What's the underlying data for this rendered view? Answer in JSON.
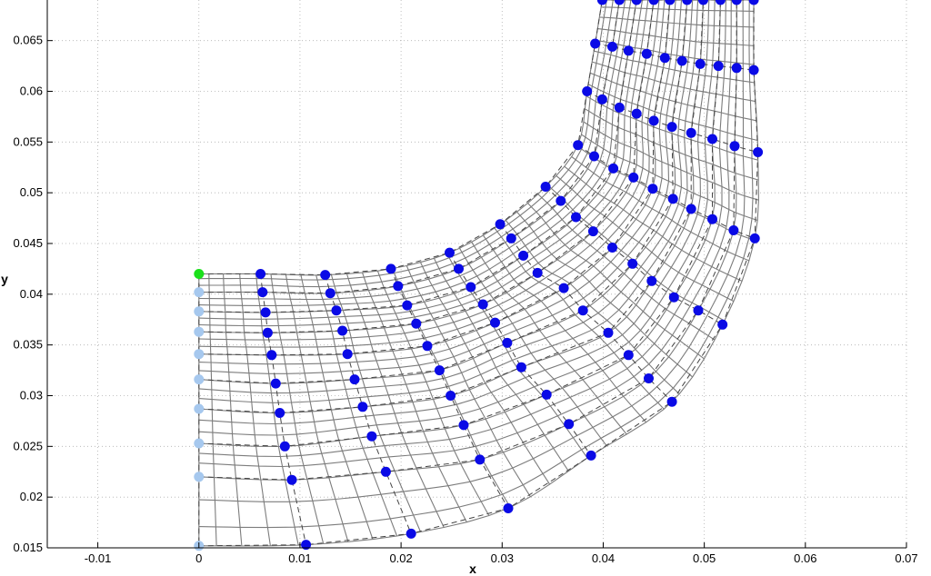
{
  "chart_data": {
    "type": "scatter",
    "xlabel": "x",
    "ylabel": "y",
    "xlim": [
      -0.015,
      0.07
    ],
    "ylim": [
      0.015,
      0.069
    ],
    "grid": true,
    "xticks": [
      "-0.01",
      "0",
      "0.01",
      "0.02",
      "0.03",
      "0.04",
      "0.05",
      "0.06",
      "0.07"
    ],
    "xtick_values": [
      -0.01,
      0,
      0.01,
      0.02,
      0.03,
      0.04,
      0.05,
      0.06,
      0.07
    ],
    "yticks": [
      "0.015",
      "0.02",
      "0.025",
      "0.03",
      "0.035",
      "0.04",
      "0.045",
      "0.05",
      "0.055",
      "0.06",
      "0.065"
    ],
    "ytick_values": [
      0.015,
      0.02,
      0.025,
      0.03,
      0.035,
      0.04,
      0.045,
      0.05,
      0.055,
      0.06,
      0.065
    ],
    "colors": {
      "control_point": "#0a0ae6",
      "inlet_point": "#a6c8ee",
      "highlight_point": "#1be01b",
      "mesh": "#7c7c7c",
      "control_net": "#444444",
      "grid": "#b0b0b0"
    },
    "series": [
      {
        "points": [
          [
            0,
            0.0152
          ],
          [
            0,
            0.022
          ],
          [
            0,
            0.0253
          ],
          [
            0,
            0.0287
          ],
          [
            0,
            0.0316
          ],
          [
            0,
            0.0341
          ],
          [
            0,
            0.0363
          ],
          [
            0,
            0.0383
          ],
          [
            0,
            0.0402
          ]
        ]
      },
      {
        "points": [
          [
            0,
            0.042
          ]
        ]
      },
      {
        "points": [
          [
            0.0061,
            0.042
          ],
          [
            0.0063,
            0.0402
          ],
          [
            0.0066,
            0.0382
          ],
          [
            0.0068,
            0.0362
          ],
          [
            0.0072,
            0.034
          ],
          [
            0.0076,
            0.0312
          ],
          [
            0.008,
            0.0283
          ],
          [
            0.0085,
            0.025
          ],
          [
            0.0092,
            0.0217
          ],
          [
            0.0106,
            0.0153
          ],
          [
            0.0125,
            0.0419
          ],
          [
            0.013,
            0.0401
          ],
          [
            0.0136,
            0.0384
          ],
          [
            0.0142,
            0.0364
          ],
          [
            0.0147,
            0.0341
          ],
          [
            0.0154,
            0.0316
          ],
          [
            0.0162,
            0.0289
          ],
          [
            0.0171,
            0.026
          ],
          [
            0.0185,
            0.0225
          ],
          [
            0.021,
            0.0164
          ],
          [
            0.019,
            0.0425
          ],
          [
            0.0197,
            0.0408
          ],
          [
            0.0206,
            0.0389
          ],
          [
            0.0215,
            0.0371
          ],
          [
            0.0226,
            0.0349
          ],
          [
            0.0238,
            0.0325
          ],
          [
            0.0249,
            0.03
          ],
          [
            0.0262,
            0.0271
          ],
          [
            0.0278,
            0.0237
          ],
          [
            0.0306,
            0.0189
          ],
          [
            0.0248,
            0.0441
          ],
          [
            0.0257,
            0.0425
          ],
          [
            0.0269,
            0.0407
          ],
          [
            0.0281,
            0.039
          ],
          [
            0.0293,
            0.0372
          ],
          [
            0.0305,
            0.0352
          ],
          [
            0.0319,
            0.0328
          ],
          [
            0.0344,
            0.0301
          ],
          [
            0.0366,
            0.0272
          ],
          [
            0.0388,
            0.0241
          ],
          [
            0.0298,
            0.0469
          ],
          [
            0.0309,
            0.0455
          ],
          [
            0.0321,
            0.0438
          ],
          [
            0.0335,
            0.0421
          ],
          [
            0.0361,
            0.0406
          ],
          [
            0.038,
            0.0384
          ],
          [
            0.0405,
            0.0362
          ],
          [
            0.0425,
            0.034
          ],
          [
            0.0445,
            0.0317
          ],
          [
            0.0468,
            0.0294
          ],
          [
            0.0343,
            0.0506
          ],
          [
            0.0358,
            0.0492
          ],
          [
            0.0373,
            0.0476
          ],
          [
            0.039,
            0.0462
          ],
          [
            0.0409,
            0.0446
          ],
          [
            0.0429,
            0.043
          ],
          [
            0.0448,
            0.0413
          ],
          [
            0.047,
            0.0397
          ],
          [
            0.0494,
            0.0384
          ],
          [
            0.0518,
            0.037
          ],
          [
            0.0375,
            0.0547
          ],
          [
            0.0391,
            0.0536
          ],
          [
            0.041,
            0.0524
          ],
          [
            0.043,
            0.0515
          ],
          [
            0.0449,
            0.0504
          ],
          [
            0.0469,
            0.0494
          ],
          [
            0.0487,
            0.0484
          ],
          [
            0.0508,
            0.0474
          ],
          [
            0.0529,
            0.0463
          ],
          [
            0.055,
            0.0455
          ],
          [
            0.0384,
            0.06
          ],
          [
            0.0399,
            0.0592
          ],
          [
            0.0416,
            0.0584
          ],
          [
            0.0433,
            0.0578
          ],
          [
            0.045,
            0.0571
          ],
          [
            0.0468,
            0.0565
          ],
          [
            0.0487,
            0.0559
          ],
          [
            0.0508,
            0.0553
          ],
          [
            0.053,
            0.0546
          ],
          [
            0.0553,
            0.054
          ],
          [
            0.0392,
            0.0647
          ],
          [
            0.0409,
            0.0644
          ],
          [
            0.0425,
            0.064
          ],
          [
            0.0443,
            0.0637
          ],
          [
            0.0461,
            0.0633
          ],
          [
            0.0478,
            0.063
          ],
          [
            0.0496,
            0.0627
          ],
          [
            0.0514,
            0.0625
          ],
          [
            0.0532,
            0.0623
          ],
          [
            0.0549,
            0.0621
          ],
          [
            0.0399,
            0.069
          ],
          [
            0.0416,
            0.069
          ],
          [
            0.0433,
            0.069
          ],
          [
            0.045,
            0.069
          ],
          [
            0.0466,
            0.069
          ],
          [
            0.0483,
            0.069
          ],
          [
            0.0499,
            0.069
          ],
          [
            0.0516,
            0.069
          ],
          [
            0.0532,
            0.069
          ],
          [
            0.0549,
            0.069
          ]
        ]
      }
    ]
  }
}
